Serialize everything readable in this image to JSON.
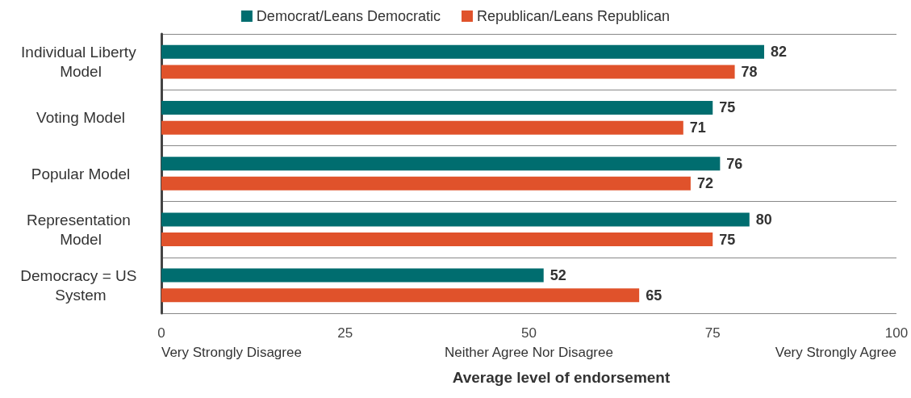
{
  "chart_data": {
    "type": "bar",
    "orientation": "horizontal",
    "xlabel": "Average level of endorsement",
    "categories": [
      "Individual Liberty Model",
      "Voting Model",
      "Popular Model",
      "Representation Model",
      "Democracy = US System"
    ],
    "series": [
      {
        "name": "Democrat/Leans Democratic",
        "color": "#006d6f",
        "values": [
          82,
          75,
          76,
          80,
          52
        ]
      },
      {
        "name": "Republican/Leans Republican",
        "color": "#e0522b",
        "values": [
          78,
          71,
          72,
          75,
          65
        ]
      }
    ],
    "xlim": [
      0,
      100
    ],
    "xticks": [
      0,
      25,
      50,
      75,
      100
    ],
    "grid": "y",
    "legend": "top",
    "data_labels": true,
    "annotations": [
      "Very Strongly Disagree",
      "Neither Agree Nor Disagree",
      "Very Strongly Agree"
    ]
  }
}
